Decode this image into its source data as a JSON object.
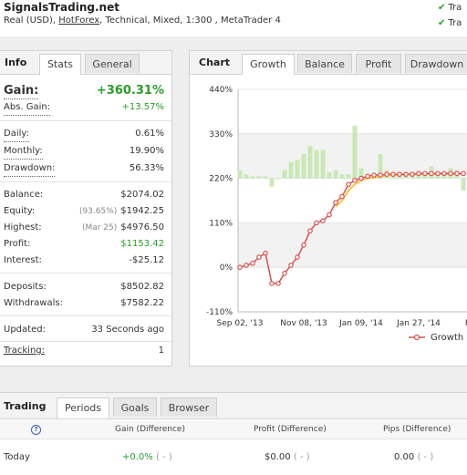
{
  "header": {
    "site_title": "SignalsTrading.net",
    "account_prefix": "Real (USD), ",
    "broker": "HotForex",
    "account_suffix": ", Technical, Mixed, 1:300 , MetaTrader 4",
    "checks": [
      "Tra",
      "Tra"
    ]
  },
  "info": {
    "title": "Info",
    "tabs": [
      "Stats",
      "General"
    ],
    "gain_label": "Gain:",
    "gain_value": "+360.31%",
    "abs_gain_label": "Abs. Gain:",
    "abs_gain_value": "+13.57%",
    "daily_label": "Daily:",
    "daily_value": "0.61%",
    "monthly_label": "Monthly:",
    "monthly_value": "19.90%",
    "drawdown_label": "Drawdown:",
    "drawdown_value": "56.33%",
    "balance_label": "Balance:",
    "balance_value": "$2074.02",
    "equity_label": "Equity:",
    "equity_sub": "(93.65%)",
    "equity_value": "$1942.25",
    "highest_label": "Highest:",
    "highest_sub": "(Mar 25)",
    "highest_value": "$4976.50",
    "profit_label": "Profit:",
    "profit_value": "$1153.42",
    "interest_label": "Interest:",
    "interest_value": "-$25.12",
    "deposits_label": "Deposits:",
    "deposits_value": "$8502.82",
    "withdrawals_label": "Withdrawals:",
    "withdrawals_value": "$7582.22",
    "updated_label": "Updated:",
    "updated_value": "33 Seconds ago",
    "tracking_label": "Tracking:",
    "tracking_value": "1"
  },
  "chart_panel": {
    "title": "Chart",
    "tabs": [
      "Growth",
      "Balance",
      "Profit",
      "Drawdown"
    ]
  },
  "chart_data": {
    "type": "line",
    "y_ticks": [
      "440%",
      "330%",
      "220%",
      "110%",
      "0%",
      "-110%"
    ],
    "ylim": [
      -110,
      440
    ],
    "x_ticks": [
      "Sep 02, '13",
      "Nov 08, '13",
      "Jan 09, '14",
      "Jan 27, '14",
      "Fe"
    ],
    "series": [
      {
        "name": "Growth",
        "color": "#d9534f",
        "values": [
          0,
          5,
          10,
          25,
          35,
          -40,
          -40,
          -15,
          5,
          25,
          55,
          90,
          110,
          115,
          130,
          160,
          175,
          205,
          215,
          220,
          225,
          228,
          228,
          230,
          230,
          230,
          230,
          230,
          232,
          232,
          232,
          232,
          232,
          232,
          232,
          232
        ]
      }
    ],
    "highlight_line": {
      "color": "#f5c542",
      "values": [
        null,
        null,
        null,
        null,
        null,
        null,
        null,
        null,
        null,
        null,
        null,
        null,
        null,
        null,
        null,
        150,
        165,
        190,
        205,
        215,
        220,
        222,
        225,
        227,
        228,
        228,
        229,
        229,
        230,
        230,
        230,
        231,
        231,
        231,
        231,
        231
      ]
    },
    "bars": {
      "color": "#c9e8b6",
      "values": [
        20,
        10,
        5,
        5,
        5,
        -20,
        0,
        20,
        40,
        45,
        60,
        80,
        70,
        70,
        15,
        20,
        10,
        10,
        130,
        25,
        10,
        5,
        60,
        20,
        10,
        5,
        10,
        10,
        10,
        10,
        30,
        10,
        10,
        25,
        20,
        -30
      ]
    },
    "legend": "bottom-right"
  },
  "trading": {
    "title": "Trading",
    "tabs": [
      "Periods",
      "Goals",
      "Browser"
    ],
    "col_gain": "Gain (Difference)",
    "col_profit": "Profit (Difference)",
    "col_pips": "Pips (Difference)",
    "rows": [
      {
        "period": "Today",
        "gain": "+0.0%",
        "gain_diff": "( - )",
        "profit": "$0.00",
        "profit_diff": "( - )",
        "pips": "0.00",
        "pips_diff": "( - )"
      }
    ]
  }
}
